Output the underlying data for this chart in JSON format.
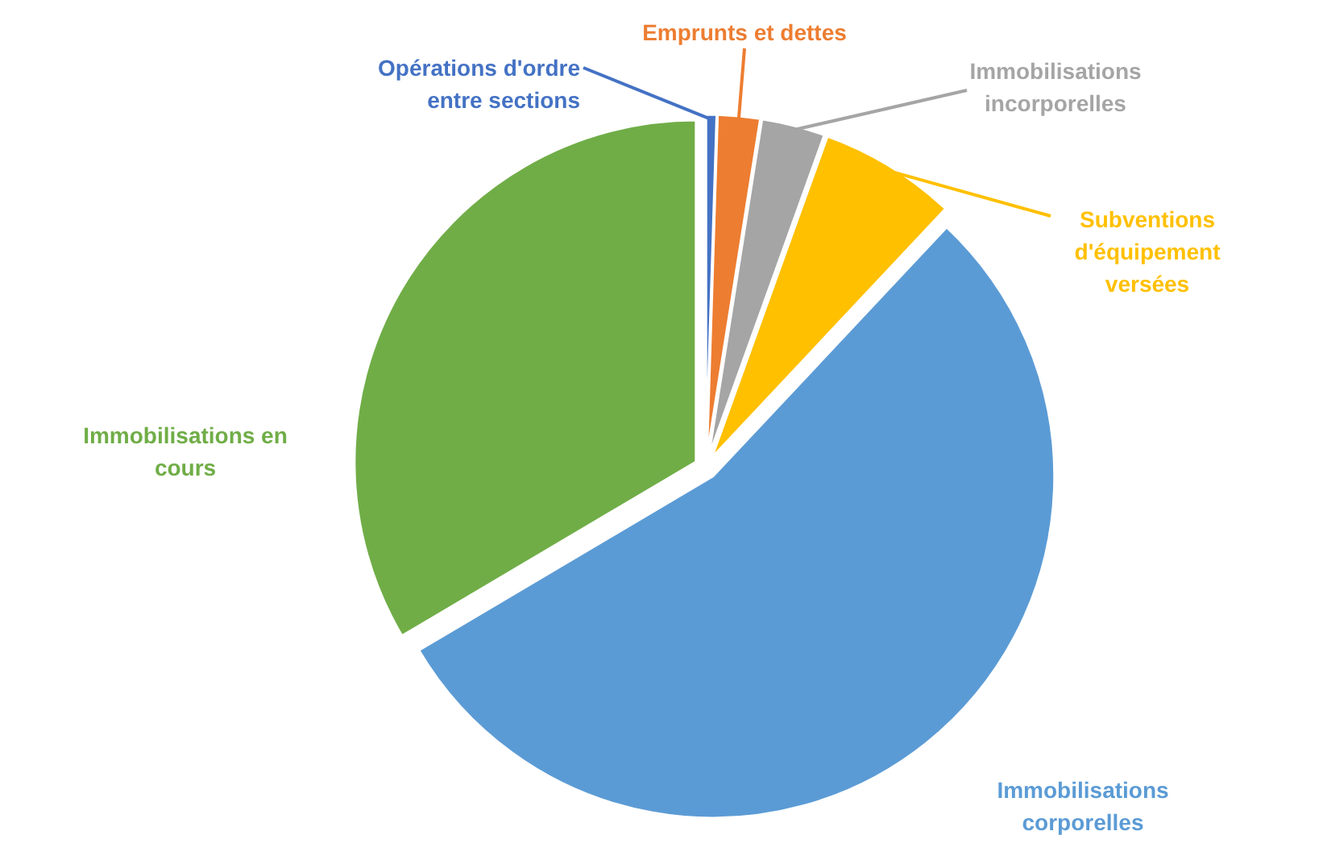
{
  "chart_data": {
    "type": "pie",
    "categories": [
      "Opérations d'ordre entre sections",
      "Emprunts et dettes",
      "Immobilisations incorporelles",
      "Subventions d'équipement versées",
      "Immobilisations corporelles",
      "Immobilisations en cours"
    ],
    "values": [
      0.5,
      2,
      3,
      6.5,
      54.5,
      33.5
    ],
    "colors": [
      "#4472c4",
      "#ed7d31",
      "#a5a5a5",
      "#ffc000",
      "#5b9bd5",
      "#70ad47"
    ]
  }
}
